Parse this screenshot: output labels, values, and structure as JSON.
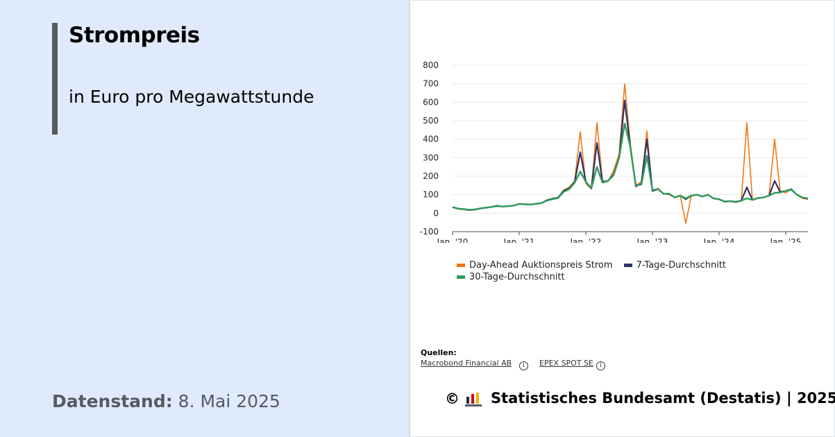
{
  "header": {
    "title": "Strompreis",
    "subtitle": "in Euro pro Megawattstunde"
  },
  "stand": {
    "label": "Datenstand:",
    "value": "8. Mai 2025"
  },
  "chart_data": {
    "type": "line",
    "x_tick_labels": [
      "Jan. '20",
      "Jan. '21",
      "Jan. '22",
      "Jan. '23",
      "Jan. '24",
      "Jan. '25"
    ],
    "y_ticks": [
      -100,
      0,
      100,
      200,
      300,
      400,
      500,
      600,
      700,
      800
    ],
    "ylim": [
      -100,
      800
    ],
    "xlim": [
      "2020-01",
      "2025-05"
    ],
    "grid": true,
    "legend_position": "bottom",
    "series": [
      {
        "name": "Day-Ahead Auktionspreis Strom",
        "color": "#f07515",
        "points": [
          [
            "2020-01",
            35
          ],
          [
            "2020-02",
            22
          ],
          [
            "2020-03",
            20
          ],
          [
            "2020-04",
            15
          ],
          [
            "2020-05",
            18
          ],
          [
            "2020-06",
            25
          ],
          [
            "2020-07",
            30
          ],
          [
            "2020-08",
            35
          ],
          [
            "2020-09",
            42
          ],
          [
            "2020-10",
            35
          ],
          [
            "2020-11",
            38
          ],
          [
            "2020-12",
            42
          ],
          [
            "2021-01",
            50
          ],
          [
            "2021-02",
            48
          ],
          [
            "2021-03",
            45
          ],
          [
            "2021-04",
            52
          ],
          [
            "2021-05",
            55
          ],
          [
            "2021-06",
            72
          ],
          [
            "2021-07",
            80
          ],
          [
            "2021-08",
            85
          ],
          [
            "2021-09",
            125
          ],
          [
            "2021-10",
            140
          ],
          [
            "2021-11",
            175
          ],
          [
            "2021-12",
            440
          ],
          [
            "2022-01",
            160
          ],
          [
            "2022-02",
            130
          ],
          [
            "2022-03",
            490
          ],
          [
            "2022-04",
            175
          ],
          [
            "2022-05",
            170
          ],
          [
            "2022-06",
            230
          ],
          [
            "2022-07",
            320
          ],
          [
            "2022-08",
            700
          ],
          [
            "2022-09",
            380
          ],
          [
            "2022-10",
            150
          ],
          [
            "2022-11",
            170
          ],
          [
            "2022-12",
            445
          ],
          [
            "2023-01",
            120
          ],
          [
            "2023-02",
            135
          ],
          [
            "2023-03",
            105
          ],
          [
            "2023-04",
            100
          ],
          [
            "2023-05",
            85
          ],
          [
            "2023-06",
            95
          ],
          [
            "2023-07",
            -55
          ],
          [
            "2023-08",
            95
          ],
          [
            "2023-09",
            100
          ],
          [
            "2023-10",
            90
          ],
          [
            "2023-11",
            100
          ],
          [
            "2023-12",
            80
          ],
          [
            "2024-01",
            75
          ],
          [
            "2024-02",
            60
          ],
          [
            "2024-03",
            65
          ],
          [
            "2024-04",
            60
          ],
          [
            "2024-05",
            65
          ],
          [
            "2024-06",
            490
          ],
          [
            "2024-07",
            70
          ],
          [
            "2024-08",
            80
          ],
          [
            "2024-09",
            85
          ],
          [
            "2024-10",
            95
          ],
          [
            "2024-11",
            400
          ],
          [
            "2024-12",
            120
          ],
          [
            "2025-01",
            110
          ],
          [
            "2025-02",
            130
          ],
          [
            "2025-03",
            100
          ],
          [
            "2025-04",
            80
          ],
          [
            "2025-05",
            75
          ]
        ]
      },
      {
        "name": "7-Tage-Durchschnitt",
        "color": "#2e3468",
        "points": [
          [
            "2020-01",
            32
          ],
          [
            "2020-02",
            24
          ],
          [
            "2020-03",
            21
          ],
          [
            "2020-04",
            17
          ],
          [
            "2020-05",
            19
          ],
          [
            "2020-06",
            26
          ],
          [
            "2020-07",
            29
          ],
          [
            "2020-08",
            34
          ],
          [
            "2020-09",
            40
          ],
          [
            "2020-10",
            36
          ],
          [
            "2020-11",
            38
          ],
          [
            "2020-12",
            41
          ],
          [
            "2021-01",
            50
          ],
          [
            "2021-02",
            48
          ],
          [
            "2021-03",
            46
          ],
          [
            "2021-04",
            51
          ],
          [
            "2021-05",
            54
          ],
          [
            "2021-06",
            70
          ],
          [
            "2021-07",
            78
          ],
          [
            "2021-08",
            84
          ],
          [
            "2021-09",
            120
          ],
          [
            "2021-10",
            135
          ],
          [
            "2021-11",
            170
          ],
          [
            "2021-12",
            330
          ],
          [
            "2022-01",
            170
          ],
          [
            "2022-02",
            135
          ],
          [
            "2022-03",
            380
          ],
          [
            "2022-04",
            170
          ],
          [
            "2022-05",
            175
          ],
          [
            "2022-06",
            210
          ],
          [
            "2022-07",
            300
          ],
          [
            "2022-08",
            610
          ],
          [
            "2022-09",
            360
          ],
          [
            "2022-10",
            145
          ],
          [
            "2022-11",
            160
          ],
          [
            "2022-12",
            400
          ],
          [
            "2023-01",
            120
          ],
          [
            "2023-02",
            130
          ],
          [
            "2023-03",
            105
          ],
          [
            "2023-04",
            105
          ],
          [
            "2023-05",
            85
          ],
          [
            "2023-06",
            95
          ],
          [
            "2023-07",
            75
          ],
          [
            "2023-08",
            95
          ],
          [
            "2023-09",
            100
          ],
          [
            "2023-10",
            90
          ],
          [
            "2023-11",
            100
          ],
          [
            "2023-12",
            80
          ],
          [
            "2024-01",
            75
          ],
          [
            "2024-02",
            62
          ],
          [
            "2024-03",
            65
          ],
          [
            "2024-04",
            60
          ],
          [
            "2024-05",
            68
          ],
          [
            "2024-06",
            140
          ],
          [
            "2024-07",
            72
          ],
          [
            "2024-08",
            82
          ],
          [
            "2024-09",
            85
          ],
          [
            "2024-10",
            95
          ],
          [
            "2024-11",
            175
          ],
          [
            "2024-12",
            115
          ],
          [
            "2025-01",
            120
          ],
          [
            "2025-02",
            130
          ],
          [
            "2025-03",
            100
          ],
          [
            "2025-04",
            85
          ],
          [
            "2025-05",
            78
          ]
        ]
      },
      {
        "name": "30-Tage-Durchschnitt",
        "color": "#2e9a5c",
        "points": [
          [
            "2020-01",
            33
          ],
          [
            "2020-02",
            25
          ],
          [
            "2020-03",
            22
          ],
          [
            "2020-04",
            18
          ],
          [
            "2020-05",
            20
          ],
          [
            "2020-06",
            26
          ],
          [
            "2020-07",
            30
          ],
          [
            "2020-08",
            34
          ],
          [
            "2020-09",
            38
          ],
          [
            "2020-10",
            36
          ],
          [
            "2020-11",
            38
          ],
          [
            "2020-12",
            41
          ],
          [
            "2021-01",
            50
          ],
          [
            "2021-02",
            48
          ],
          [
            "2021-03",
            47
          ],
          [
            "2021-04",
            50
          ],
          [
            "2021-05",
            54
          ],
          [
            "2021-06",
            68
          ],
          [
            "2021-07",
            76
          ],
          [
            "2021-08",
            82
          ],
          [
            "2021-09",
            115
          ],
          [
            "2021-10",
            130
          ],
          [
            "2021-11",
            165
          ],
          [
            "2021-12",
            225
          ],
          [
            "2022-01",
            170
          ],
          [
            "2022-02",
            135
          ],
          [
            "2022-03",
            250
          ],
          [
            "2022-04",
            165
          ],
          [
            "2022-05",
            175
          ],
          [
            "2022-06",
            205
          ],
          [
            "2022-07",
            300
          ],
          [
            "2022-08",
            485
          ],
          [
            "2022-09",
            360
          ],
          [
            "2022-10",
            150
          ],
          [
            "2022-11",
            155
          ],
          [
            "2022-12",
            310
          ],
          [
            "2023-01",
            125
          ],
          [
            "2023-02",
            130
          ],
          [
            "2023-03",
            105
          ],
          [
            "2023-04",
            105
          ],
          [
            "2023-05",
            85
          ],
          [
            "2023-06",
            95
          ],
          [
            "2023-07",
            80
          ],
          [
            "2023-08",
            95
          ],
          [
            "2023-09",
            100
          ],
          [
            "2023-10",
            90
          ],
          [
            "2023-11",
            100
          ],
          [
            "2023-12",
            80
          ],
          [
            "2024-01",
            75
          ],
          [
            "2024-02",
            63
          ],
          [
            "2024-03",
            65
          ],
          [
            "2024-04",
            62
          ],
          [
            "2024-05",
            68
          ],
          [
            "2024-06",
            80
          ],
          [
            "2024-07",
            72
          ],
          [
            "2024-08",
            82
          ],
          [
            "2024-09",
            85
          ],
          [
            "2024-10",
            95
          ],
          [
            "2024-11",
            110
          ],
          [
            "2024-12",
            112
          ],
          [
            "2025-01",
            120
          ],
          [
            "2025-02",
            128
          ],
          [
            "2025-03",
            100
          ],
          [
            "2025-04",
            85
          ],
          [
            "2025-05",
            80
          ]
        ]
      }
    ]
  },
  "sources": {
    "label": "Quellen:",
    "items": [
      "Macrobond Financial AB",
      "EPEX SPOT SE"
    ]
  },
  "footer": {
    "copyright": "©",
    "text": "Statistisches Bundesamt (Destatis) | 2025"
  },
  "icons": [
    "info-icon",
    "destatis-logo"
  ]
}
